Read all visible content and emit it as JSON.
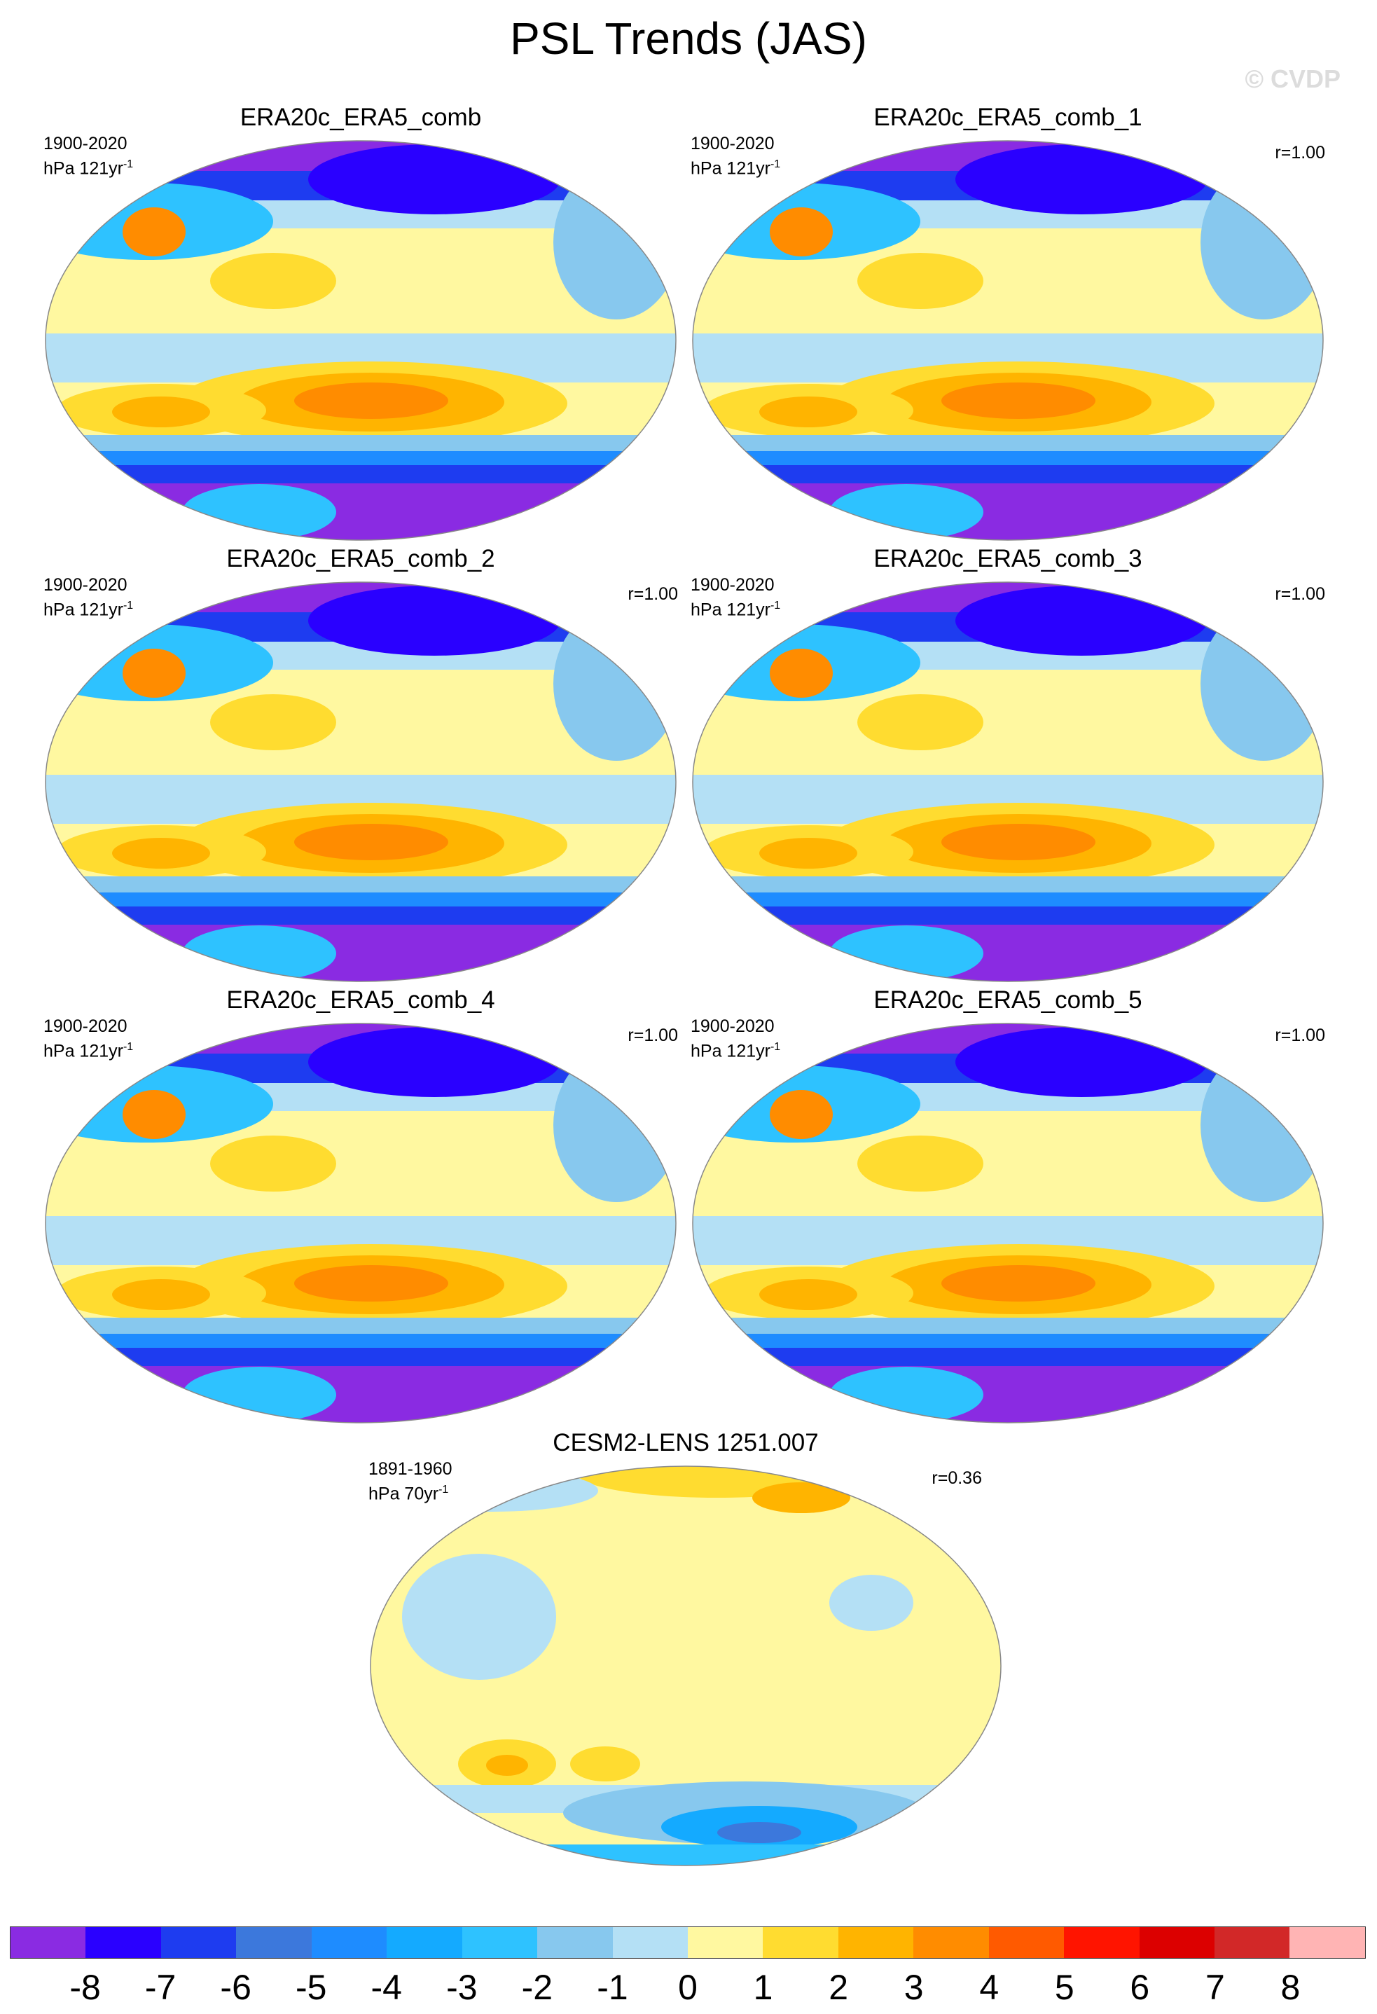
{
  "title": "PSL Trends (JAS)",
  "watermark": "© CVDP",
  "panels": [
    {
      "title": "ERA20c_ERA5_comb",
      "period": "1900-2020",
      "units": "hPa 121yr",
      "units_exp": "-1",
      "corr": ""
    },
    {
      "title": "ERA20c_ERA5_comb_1",
      "period": "1900-2020",
      "units": "hPa 121yr",
      "units_exp": "-1",
      "corr": "r=1.00"
    },
    {
      "title": "ERA20c_ERA5_comb_2",
      "period": "1900-2020",
      "units": "hPa 121yr",
      "units_exp": "-1",
      "corr": "r=1.00"
    },
    {
      "title": "ERA20c_ERA5_comb_3",
      "period": "1900-2020",
      "units": "hPa 121yr",
      "units_exp": "-1",
      "corr": "r=1.00"
    },
    {
      "title": "ERA20c_ERA5_comb_4",
      "period": "1900-2020",
      "units": "hPa 121yr",
      "units_exp": "-1",
      "corr": "r=1.00"
    },
    {
      "title": "ERA20c_ERA5_comb_5",
      "period": "1900-2020",
      "units": "hPa 121yr",
      "units_exp": "-1",
      "corr": "r=1.00"
    },
    {
      "title": "CESM2-LENS 1251.007",
      "period": "1891-1960",
      "units": "hPa 70yr",
      "units_exp": "-1",
      "corr": "r=0.36"
    }
  ],
  "colorbar": {
    "colors": [
      "#8a2be2",
      "#2a00ff",
      "#1e3cf0",
      "#3c78dc",
      "#1e8cff",
      "#14aaff",
      "#2ec2ff",
      "#87c8ee",
      "#b4e0f5",
      "#fff8a0",
      "#ffdc30",
      "#ffb400",
      "#ff8c00",
      "#ff5a00",
      "#ff1400",
      "#dc0000",
      "#d22828",
      "#ffb4b4"
    ],
    "labels": [
      "-8",
      "-7",
      "-6",
      "-5",
      "-4",
      "-3",
      "-2",
      "-1",
      "0",
      "1",
      "2",
      "3",
      "4",
      "5",
      "6",
      "7",
      "8"
    ]
  }
}
